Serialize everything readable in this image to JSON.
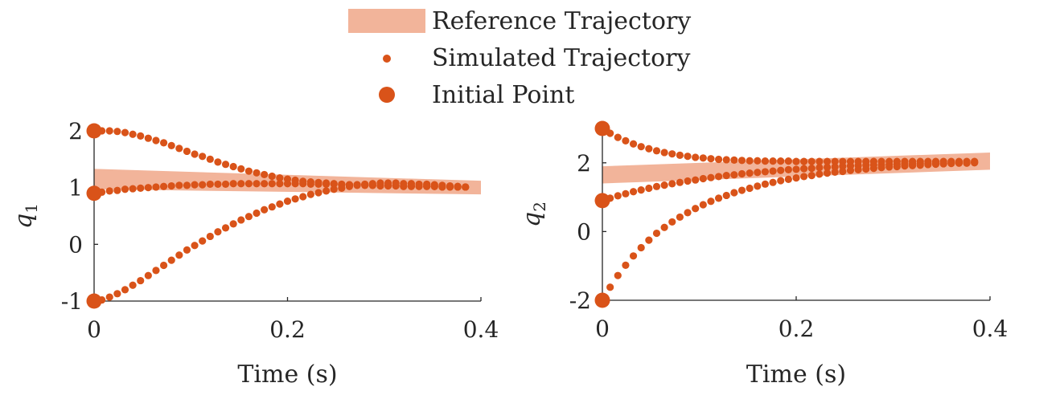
{
  "legend": {
    "position": "top-center",
    "entries": [
      {
        "label": "Reference Trajectory",
        "style": "band"
      },
      {
        "label": "Simulated Trajectory",
        "style": "dot"
      },
      {
        "label": "Initial Point",
        "style": "large-dot"
      }
    ]
  },
  "colors": {
    "simulated": "#D95319",
    "reference_band": "#F2B49A",
    "axis": "#262626"
  },
  "chart_data": [
    {
      "type": "scatter",
      "panel": "q1",
      "xlabel": "Time (s)",
      "ylabel_main": "q",
      "ylabel_sub": "1",
      "xlim": [
        0,
        0.4
      ],
      "ylim": [
        -1,
        2
      ],
      "xticks": [
        0,
        0.2,
        0.4
      ],
      "xtick_labels": [
        "0",
        "0.2",
        "0.4"
      ],
      "yticks": [
        -1,
        0,
        1,
        2
      ],
      "ytick_labels": [
        "-1",
        "0",
        "1",
        "2"
      ],
      "grid": false,
      "reference_band": {
        "x": [
          0,
          0.4
        ],
        "upper": [
          1.33,
          1.12
        ],
        "lower": [
          0.97,
          0.88
        ]
      },
      "dt": 0.008,
      "series": [
        {
          "initial": 2.0,
          "values": [
            2.0,
            2.0,
            2.0,
            1.99,
            1.97,
            1.94,
            1.91,
            1.87,
            1.83,
            1.79,
            1.74,
            1.69,
            1.64,
            1.59,
            1.55,
            1.5,
            1.45,
            1.41,
            1.37,
            1.33,
            1.29,
            1.26,
            1.23,
            1.2,
            1.17,
            1.15,
            1.13,
            1.11,
            1.1,
            1.09,
            1.08,
            1.07,
            1.06,
            1.05,
            1.05,
            1.04,
            1.04,
            1.03,
            1.03,
            1.03,
            1.02,
            1.02,
            1.02,
            1.02,
            1.02,
            1.01,
            1.01,
            1.01,
            1.01
          ]
        },
        {
          "initial": 0.9,
          "values": [
            0.9,
            0.92,
            0.94,
            0.95,
            0.97,
            0.98,
            0.99,
            1.0,
            1.01,
            1.02,
            1.03,
            1.04,
            1.04,
            1.05,
            1.05,
            1.06,
            1.06,
            1.06,
            1.07,
            1.07,
            1.07,
            1.07,
            1.07,
            1.07,
            1.07,
            1.07,
            1.07,
            1.07,
            1.06,
            1.06,
            1.06,
            1.06,
            1.05,
            1.05,
            1.05,
            1.05,
            1.04,
            1.04,
            1.04,
            1.04,
            1.03,
            1.03,
            1.03,
            1.03,
            1.02,
            1.02,
            1.02,
            1.02,
            1.01
          ]
        },
        {
          "initial": -1.0,
          "values": [
            -1.0,
            -0.98,
            -0.93,
            -0.87,
            -0.8,
            -0.72,
            -0.64,
            -0.55,
            -0.46,
            -0.37,
            -0.28,
            -0.19,
            -0.1,
            -0.02,
            0.06,
            0.14,
            0.22,
            0.29,
            0.36,
            0.43,
            0.49,
            0.55,
            0.61,
            0.66,
            0.71,
            0.76,
            0.8,
            0.84,
            0.88,
            0.91,
            0.94,
            0.97,
            0.99,
            1.02,
            1.04,
            1.06,
            1.07,
            1.08,
            1.08,
            1.08,
            1.07,
            1.07,
            1.06,
            1.06,
            1.05,
            1.04,
            1.03,
            1.02,
            1.01
          ]
        }
      ]
    },
    {
      "type": "scatter",
      "panel": "q2",
      "xlabel": "Time (s)",
      "ylabel_main": "q",
      "ylabel_sub": "2",
      "xlim": [
        0,
        0.4
      ],
      "ylim": [
        -2,
        3
      ],
      "xticks": [
        0,
        0.2,
        0.4
      ],
      "xtick_labels": [
        "0",
        "0.2",
        "0.4"
      ],
      "yticks": [
        -2,
        0,
        2
      ],
      "ytick_labels": [
        "-2",
        "0",
        "2"
      ],
      "grid": false,
      "reference_band": {
        "x": [
          0,
          0.4
        ],
        "upper": [
          1.9,
          2.3
        ],
        "lower": [
          1.4,
          1.8
        ]
      },
      "dt": 0.008,
      "series": [
        {
          "initial": 3.0,
          "values": [
            3.0,
            2.86,
            2.74,
            2.64,
            2.55,
            2.47,
            2.41,
            2.35,
            2.3,
            2.26,
            2.22,
            2.19,
            2.16,
            2.14,
            2.12,
            2.1,
            2.09,
            2.08,
            2.07,
            2.06,
            2.06,
            2.05,
            2.05,
            2.05,
            2.05,
            2.04,
            2.04,
            2.04,
            2.04,
            2.04,
            2.04,
            2.04,
            2.04,
            2.04,
            2.04,
            2.04,
            2.04,
            2.04,
            2.04,
            2.04,
            2.04,
            2.04,
            2.04,
            2.04,
            2.04,
            2.04,
            2.04,
            2.04,
            2.04
          ]
        },
        {
          "initial": 0.9,
          "values": [
            0.9,
            0.97,
            1.04,
            1.1,
            1.16,
            1.21,
            1.26,
            1.31,
            1.35,
            1.39,
            1.43,
            1.47,
            1.5,
            1.54,
            1.57,
            1.6,
            1.63,
            1.65,
            1.68,
            1.7,
            1.72,
            1.74,
            1.76,
            1.78,
            1.8,
            1.81,
            1.83,
            1.84,
            1.86,
            1.87,
            1.88,
            1.9,
            1.91,
            1.92,
            1.93,
            1.94,
            1.94,
            1.95,
            1.96,
            1.97,
            1.97,
            1.98,
            1.98,
            1.99,
            1.99,
            2.0,
            2.0,
            2.0,
            2.01
          ]
        },
        {
          "initial": -2.0,
          "values": [
            -2.0,
            -1.62,
            -1.28,
            -0.98,
            -0.71,
            -0.47,
            -0.25,
            -0.05,
            0.12,
            0.28,
            0.42,
            0.55,
            0.67,
            0.78,
            0.88,
            0.97,
            1.05,
            1.13,
            1.2,
            1.26,
            1.32,
            1.38,
            1.43,
            1.48,
            1.52,
            1.56,
            1.6,
            1.63,
            1.67,
            1.7,
            1.73,
            1.75,
            1.78,
            1.8,
            1.82,
            1.84,
            1.86,
            1.88,
            1.89,
            1.91,
            1.92,
            1.93,
            1.95,
            1.96,
            1.97,
            1.98,
            1.99,
            1.99,
            2.0
          ]
        }
      ]
    }
  ]
}
